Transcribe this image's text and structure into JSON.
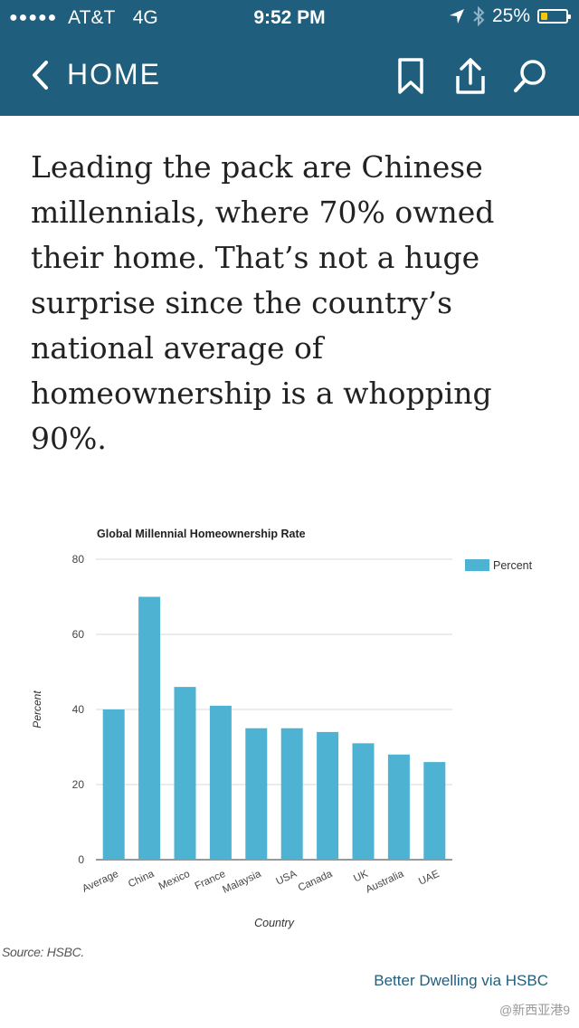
{
  "status_bar": {
    "signal_dots": "●●●●●",
    "carrier": "AT&T",
    "network": "4G",
    "time": "9:52 PM",
    "battery": "25%",
    "battery_level": 0.25,
    "icons": [
      "location-arrow-icon",
      "bluetooth-icon",
      "battery-icon"
    ]
  },
  "nav": {
    "back_label": "HOME",
    "actions": [
      "bookmark-icon",
      "share-icon",
      "search-icon"
    ]
  },
  "article": {
    "paragraph": "Leading the pack are Chinese millennials, where 70% owned their home. That’s not a huge surprise since the country’s national average of homeownership is a whopping 90%."
  },
  "chart_data": {
    "type": "bar",
    "title": "Global Millennial Homeownership Rate",
    "xlabel": "Country",
    "ylabel": "Percent",
    "ylim": [
      0,
      80
    ],
    "yticks": [
      0,
      20,
      40,
      60,
      80
    ],
    "grid": true,
    "legend": "top-right",
    "color": "#4eb3d3",
    "categories": [
      "Average",
      "China",
      "Mexico",
      "France",
      "Malaysia",
      "USA",
      "Canada",
      "UK",
      "Australia",
      "UAE"
    ],
    "series": [
      {
        "name": "Percent",
        "values": [
          40,
          70,
          46,
          41,
          35,
          35,
          34,
          31,
          28,
          26
        ]
      }
    ]
  },
  "source": "Source: HSBC.",
  "credit": "Better Dwelling via HSBC",
  "watermark": "@新西亚港9"
}
